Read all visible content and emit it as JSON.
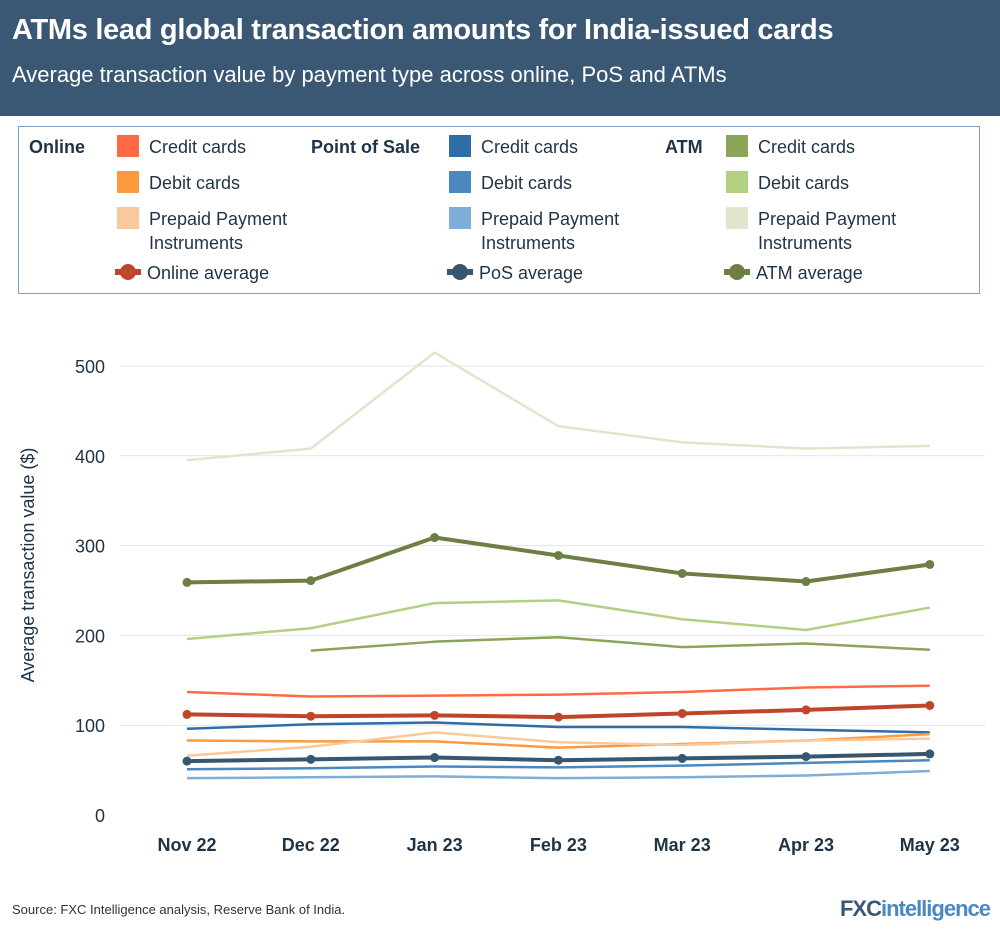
{
  "header": {
    "title": "ATMs lead global transaction amounts for India-issued cards",
    "subtitle": "Average transaction value by payment type across online, PoS and ATMs"
  },
  "legend": {
    "groups": [
      {
        "label": "Online",
        "items": [
          "Credit cards",
          "Debit cards",
          "Prepaid Payment Instruments",
          "Online average"
        ]
      },
      {
        "label": "Point of Sale",
        "items": [
          "Credit cards",
          "Debit cards",
          "Prepaid Payment Instruments",
          "PoS average"
        ]
      },
      {
        "label": "ATM",
        "items": [
          "Credit cards",
          "Debit cards",
          "Prepaid Payment Instruments",
          "ATM average"
        ]
      }
    ]
  },
  "footer": {
    "source": "Source: FXC Intelligence analysis, Reserve Bank of India.",
    "logo": "FXCintelligence"
  },
  "chart_data": {
    "type": "line",
    "ylabel": "Average transaction value ($)",
    "xlabel": "",
    "categories": [
      "Nov 22",
      "Dec 22",
      "Jan 23",
      "Feb 23",
      "Mar 23",
      "Apr 23",
      "May 23"
    ],
    "yticks": [
      0,
      100,
      200,
      300,
      400,
      500
    ],
    "ylim": [
      0,
      550
    ],
    "grid": "horizontal",
    "legend_placement": "top",
    "series": [
      {
        "name": "ATM Prepaid Payment Instruments",
        "color": "#dfe6cc",
        "marker": false,
        "values": [
          395,
          408,
          515,
          433,
          415,
          408,
          411
        ]
      },
      {
        "name": "ATM Debit cards",
        "color": "#b3cf82",
        "marker": false,
        "values": [
          196,
          208,
          236,
          239,
          218,
          206,
          231
        ]
      },
      {
        "name": "ATM Credit cards",
        "color": "#8aa55a",
        "marker": false,
        "values": [
          null,
          183,
          193,
          198,
          187,
          191,
          184
        ]
      },
      {
        "name": "Online Credit cards",
        "color": "#ff6a45",
        "marker": false,
        "values": [
          137,
          132,
          133,
          134,
          137,
          142,
          144
        ]
      },
      {
        "name": "PoS Credit cards",
        "color": "#2e6ea8",
        "marker": false,
        "values": [
          96,
          101,
          103,
          98,
          98,
          95,
          92
        ]
      },
      {
        "name": "Online Debit cards",
        "color": "#fd9a3e",
        "marker": false,
        "values": [
          83,
          82,
          82,
          75,
          79,
          83,
          90
        ]
      },
      {
        "name": "Online Prepaid Payment Instruments",
        "color": "#f9c89b",
        "marker": false,
        "values": [
          66,
          76,
          92,
          81,
          78,
          83,
          85
        ]
      },
      {
        "name": "PoS Debit cards",
        "color": "#4a88bf",
        "marker": false,
        "values": [
          51,
          52,
          54,
          53,
          55,
          58,
          61
        ]
      },
      {
        "name": "PoS Prepaid Payment Instruments",
        "color": "#7eaed8",
        "marker": false,
        "values": [
          41,
          42,
          43,
          41,
          42,
          44,
          49
        ]
      },
      {
        "name": "ATM average",
        "color": "#6d7f44",
        "marker": true,
        "values": [
          259,
          261,
          309,
          289,
          269,
          260,
          279
        ]
      },
      {
        "name": "Online average",
        "color": "#c0452a",
        "marker": true,
        "values": [
          112,
          110,
          111,
          109,
          113,
          117,
          122
        ]
      },
      {
        "name": "PoS average",
        "color": "#36576f",
        "marker": true,
        "values": [
          60,
          62,
          64,
          61,
          63,
          65,
          68
        ]
      }
    ]
  }
}
